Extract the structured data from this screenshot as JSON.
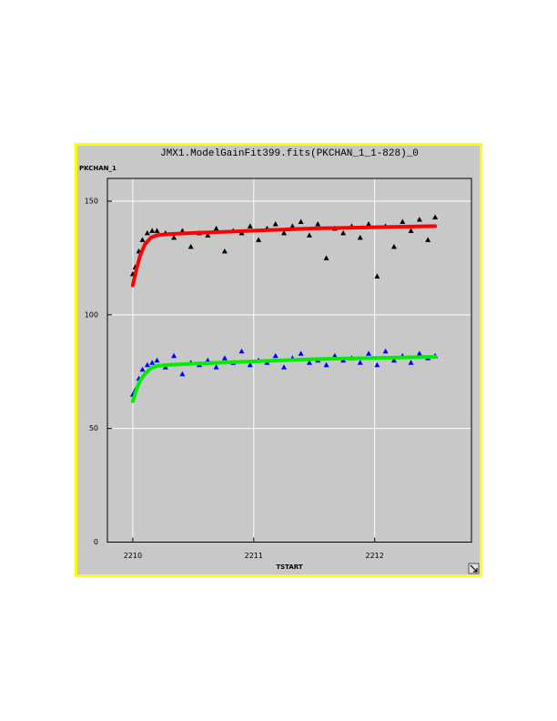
{
  "chart_data": {
    "type": "scatter",
    "title": "JMX1.ModelGainFit399.fits(PKCHAN_1_1-828)_0",
    "y_label": "PKCHAN_1",
    "x_label": "TSTART",
    "xlim": [
      2209.79,
      2212.8
    ],
    "ylim": [
      0,
      160
    ],
    "xticks": [
      2210,
      2211,
      2212
    ],
    "yticks": [
      0,
      50,
      100,
      150
    ],
    "grid": true,
    "series": [
      {
        "mode": "markers",
        "color": "#000000",
        "x": [
          2210.0,
          2210.02,
          2210.05,
          2210.08,
          2210.12,
          2210.16,
          2210.2,
          2210.27,
          2210.34,
          2210.41,
          2210.48,
          2210.55,
          2210.62,
          2210.69,
          2210.76,
          2210.83,
          2210.9,
          2210.97,
          2211.04,
          2211.11,
          2211.18,
          2211.25,
          2211.32,
          2211.39,
          2211.46,
          2211.53,
          2211.6,
          2211.67,
          2211.74,
          2211.81,
          2211.88,
          2211.95,
          2212.02,
          2212.09,
          2212.16,
          2212.23,
          2212.3,
          2212.37,
          2212.44,
          2212.5
        ],
        "values": [
          118,
          121,
          128,
          133,
          136,
          137,
          137,
          136,
          134,
          137,
          130,
          136,
          135,
          138,
          128,
          137,
          136,
          139,
          133,
          138,
          140,
          136,
          139,
          141,
          135,
          140,
          125,
          138,
          136,
          139,
          134,
          140,
          117,
          139,
          130,
          141,
          137,
          142,
          133,
          143
        ]
      },
      {
        "mode": "markers",
        "color": "#0000ff",
        "x": [
          2210.0,
          2210.02,
          2210.05,
          2210.08,
          2210.12,
          2210.16,
          2210.2,
          2210.27,
          2210.34,
          2210.41,
          2210.48,
          2210.55,
          2210.62,
          2210.69,
          2210.76,
          2210.83,
          2210.9,
          2210.97,
          2211.04,
          2211.11,
          2211.18,
          2211.25,
          2211.32,
          2211.39,
          2211.46,
          2211.53,
          2211.6,
          2211.67,
          2211.74,
          2211.81,
          2211.88,
          2211.95,
          2212.02,
          2212.09,
          2212.16,
          2212.23,
          2212.3,
          2212.37,
          2212.44,
          2212.5
        ],
        "values": [
          65,
          67,
          72,
          76,
          78,
          79,
          80,
          77,
          82,
          74,
          79,
          78,
          80,
          77,
          81,
          79,
          84,
          78,
          80,
          79,
          82,
          77,
          81,
          83,
          79,
          80,
          78,
          82,
          80,
          81,
          79,
          83,
          78,
          84,
          80,
          82,
          79,
          83,
          81,
          82
        ]
      },
      {
        "mode": "lines",
        "color": "#ff0000",
        "x": [
          2210,
          2210.03,
          2210.06,
          2210.1,
          2210.15,
          2210.2,
          2210.3,
          2210.5,
          2211,
          2211.5,
          2212,
          2212.5
        ],
        "values": [
          113,
          120,
          126,
          131,
          134,
          135,
          135.5,
          136,
          137,
          138,
          138.5,
          139
        ]
      },
      {
        "mode": "lines",
        "color": "#00ee00",
        "x": [
          2210,
          2210.03,
          2210.06,
          2210.1,
          2210.15,
          2210.2,
          2210.3,
          2210.5,
          2211,
          2211.5,
          2212,
          2212.5
        ],
        "values": [
          62,
          67,
          71,
          74,
          76.5,
          77.5,
          78,
          78.5,
          79.5,
          80.5,
          81,
          81.5
        ]
      }
    ]
  }
}
